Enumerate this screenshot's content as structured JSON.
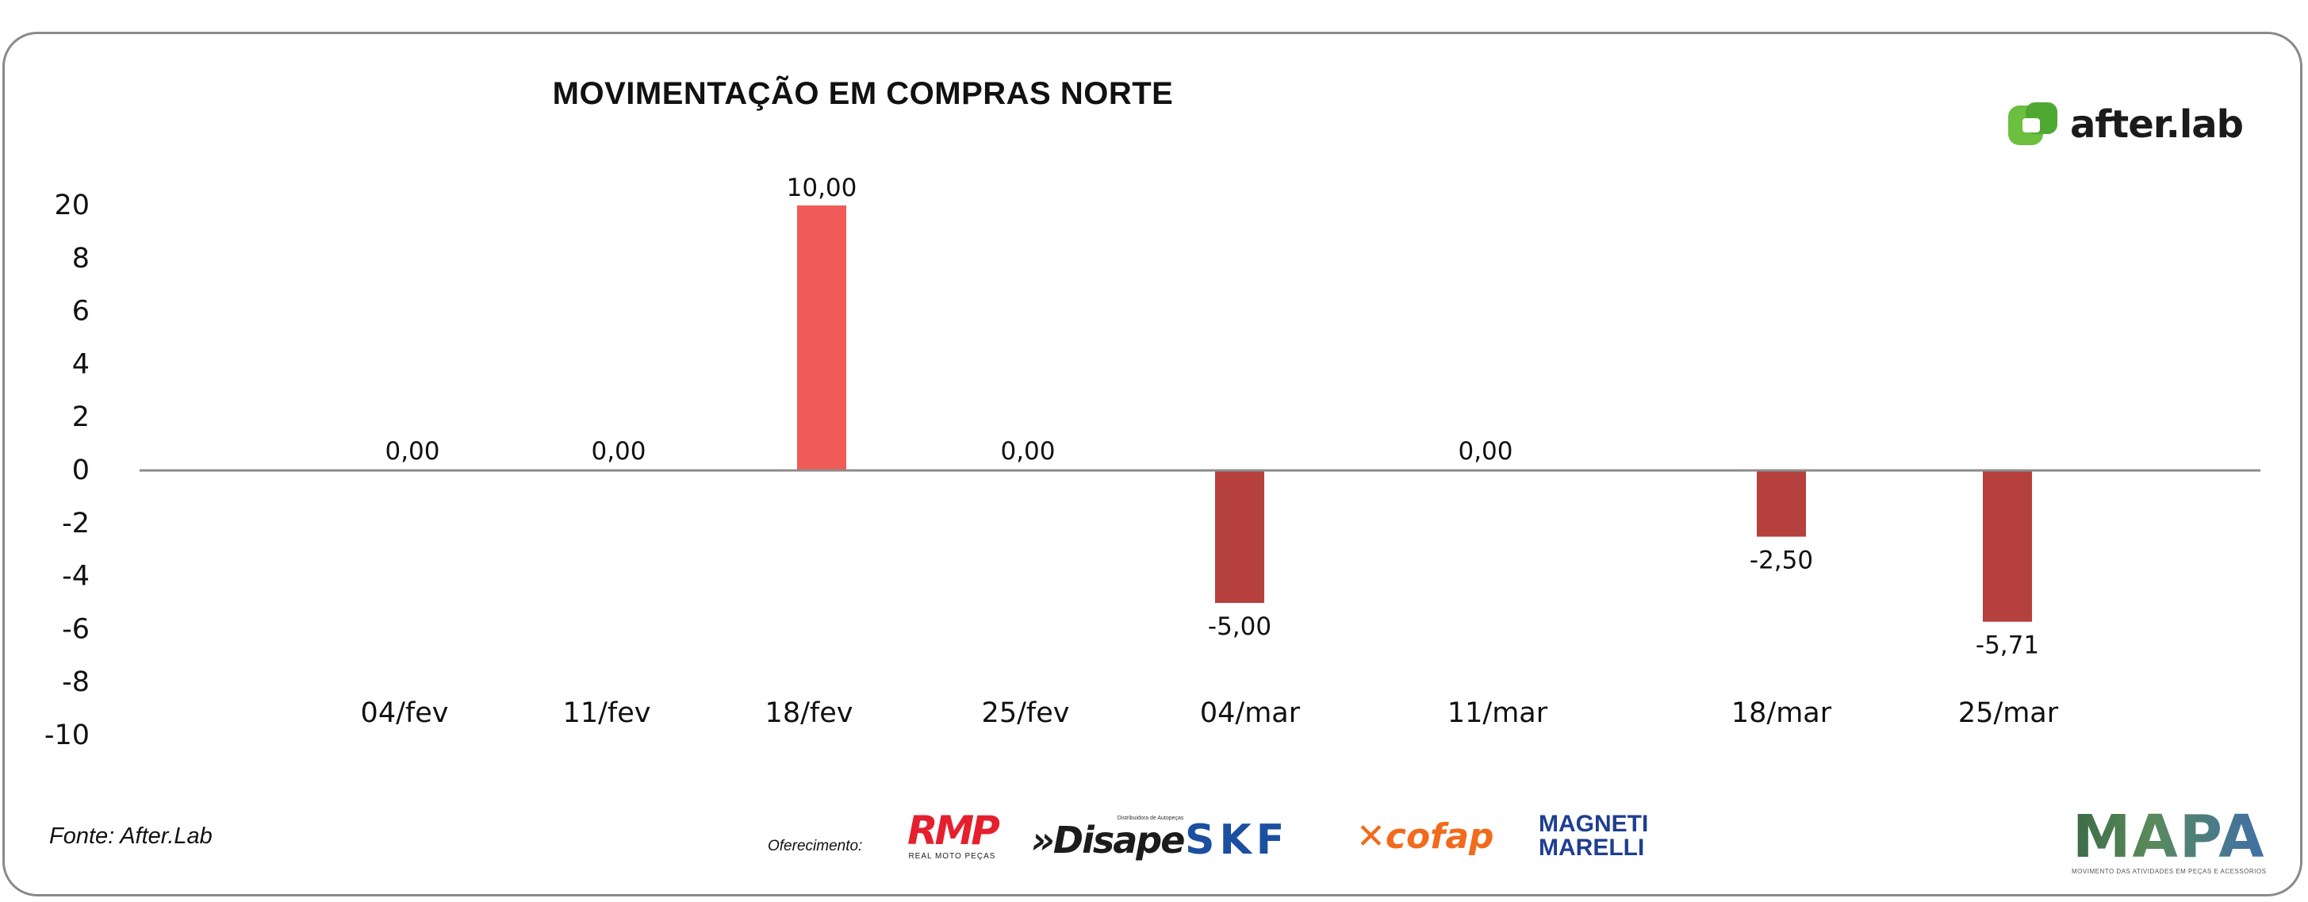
{
  "title": "MOVIMENTAÇÃO EM COMPRAS NORTE",
  "brand": {
    "name": "after.lab",
    "accent": "#6cbf3f"
  },
  "source": "Fonte: After.Lab",
  "sponsors": {
    "label": "Oferecimento:",
    "items": [
      {
        "name": "RMP",
        "tagline": "REAL MOTO PEÇAS"
      },
      {
        "name": "Disape",
        "tagline": "Distribuidora de Autopeças"
      },
      {
        "name": "SKF"
      },
      {
        "name": "cofap"
      },
      {
        "name": "MAGNETI MARELLI"
      }
    ]
  },
  "mapa": {
    "name": "MAPA",
    "tagline": "MOVIMENTO DAS ATIVIDADES EM PEÇAS E ACESSÓRIOS"
  },
  "chart_data": {
    "type": "bar",
    "title": "MOVIMENTAÇÃO EM COMPRAS NORTE",
    "categories": [
      "04/fev",
      "11/fev",
      "18/fev",
      "25/fev",
      "04/mar",
      "11/mar",
      "18/mar",
      "25/mar"
    ],
    "values": [
      0.0,
      0.0,
      10.0,
      0.0,
      -5.0,
      0.0,
      -2.5,
      -5.71
    ],
    "data_labels": [
      "0,00",
      "0,00",
      "10,00",
      "0,00",
      "-5,00",
      "0,00",
      "-2,50",
      "-5,71"
    ],
    "y_ticks": [
      "20",
      "8",
      "6",
      "4",
      "2",
      "0",
      "-2",
      "-4",
      "-6",
      "-8",
      "-10"
    ],
    "grid": false,
    "legend": "none",
    "colors": {
      "positive": "#f05a57",
      "negative": "#b5403d",
      "axis": "#8c8c8c"
    }
  }
}
